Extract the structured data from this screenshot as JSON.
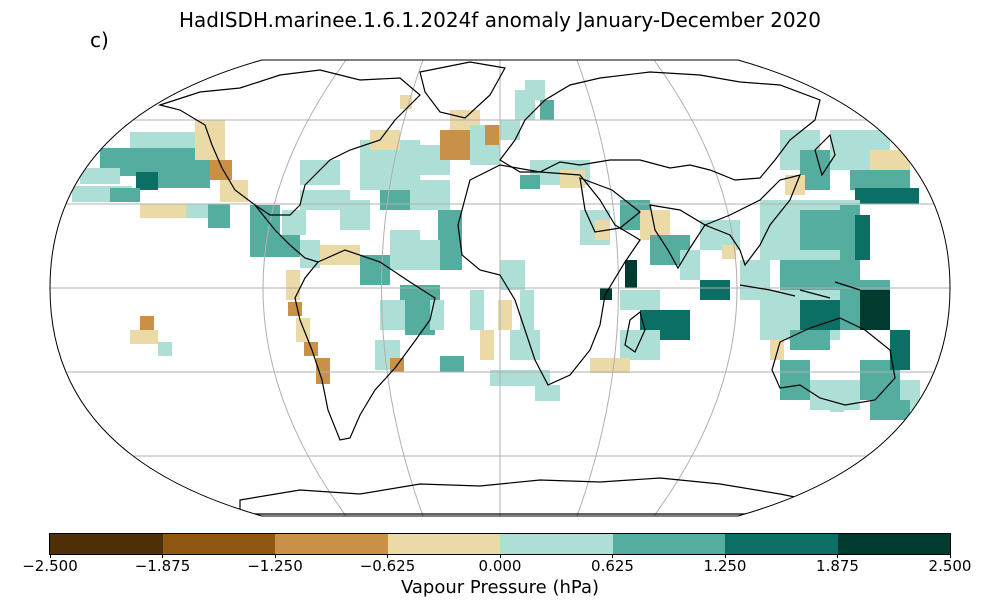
{
  "title": "HadISDH.marinee.1.6.1.2024f anomaly January-December 2020",
  "panel_label": "c)",
  "colorbar": {
    "label": "Vapour Pressure (hPa)",
    "ticks": [
      "−2.500",
      "−1.875",
      "−1.250",
      "−0.625",
      "0.000",
      "0.625",
      "1.250",
      "1.875",
      "2.500"
    ],
    "colors": [
      "#4f2f07",
      "#8f5711",
      "#c99147",
      "#ebd9a6",
      "#aedfd7",
      "#55ad9f",
      "#0c6f65",
      "#013b30"
    ]
  },
  "map": {
    "projection": "Robinson",
    "graticule": "grid on",
    "land": "coastlines only (no fill)",
    "missing_data": "white"
  }
}
